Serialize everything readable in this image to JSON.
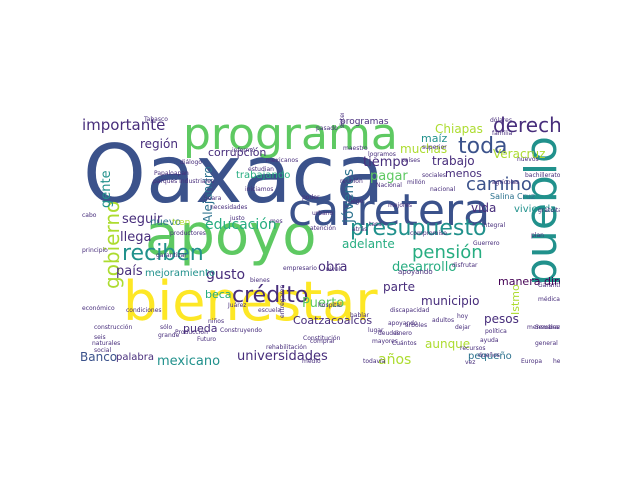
{
  "palette": {
    "background": "#ffffff",
    "navy": "#3b528b",
    "teal": "#21918c",
    "green": "#5ec962",
    "lime": "#addc30",
    "yellow": "#fde725",
    "purple": "#440154",
    "indigo": "#472d7b",
    "sea": "#27ad81",
    "steel": "#2c728e"
  },
  "words": [
    {
      "text": "Oaxaca",
      "color": "navy"
    },
    {
      "text": "bienestar",
      "color": "yellow"
    },
    {
      "text": "apoyo",
      "color": "green"
    },
    {
      "text": "programa",
      "color": "green"
    },
    {
      "text": "carretera",
      "color": "navy"
    },
    {
      "text": "pueblo",
      "color": "teal"
    },
    {
      "text": "presupuesto",
      "color": "teal"
    },
    {
      "text": "gobierno",
      "color": "lime"
    },
    {
      "text": "reciben",
      "color": "teal"
    },
    {
      "text": "crédito",
      "color": "indigo"
    },
    {
      "text": "derecho",
      "color": "indigo"
    },
    {
      "text": "toda",
      "color": "navy"
    },
    {
      "text": "camino",
      "color": "navy"
    },
    {
      "text": "Loma Bonita",
      "color": "indigo"
    },
    {
      "text": "pensión",
      "color": "sea"
    },
    {
      "text": "importante",
      "color": "indigo"
    },
    {
      "text": "jóvenes",
      "color": "steel"
    },
    {
      "text": "Alejandro",
      "color": "steel"
    },
    {
      "text": "educación",
      "color": "sea"
    },
    {
      "text": "universidades",
      "color": "indigo"
    },
    {
      "text": "mexicano",
      "color": "teal"
    },
    {
      "text": "Banco",
      "color": "navy"
    },
    {
      "text": "país",
      "color": "indigo"
    },
    {
      "text": "llega",
      "color": "indigo"
    },
    {
      "text": "seguir",
      "color": "indigo"
    },
    {
      "text": "gente",
      "color": "teal"
    },
    {
      "text": "región",
      "color": "indigo"
    },
    {
      "text": "corrupción",
      "color": "indigo"
    },
    {
      "text": "trabajando",
      "color": "sea"
    },
    {
      "text": "beca",
      "color": "sea"
    },
    {
      "text": "nuevo",
      "color": "steel"
    },
    {
      "text": "tren",
      "color": "lime"
    },
    {
      "text": "pueda",
      "color": "indigo"
    },
    {
      "text": "gusto",
      "color": "indigo"
    },
    {
      "text": "obra",
      "color": "indigo"
    },
    {
      "text": "Puerto",
      "color": "green"
    },
    {
      "text": "Coatzacoalcos",
      "color": "indigo"
    },
    {
      "text": "años",
      "color": "lime"
    },
    {
      "text": "aunque",
      "color": "lime"
    },
    {
      "text": "desarrollo",
      "color": "sea"
    },
    {
      "text": "municipio",
      "color": "indigo"
    },
    {
      "text": "adelante",
      "color": "sea"
    },
    {
      "text": "parte",
      "color": "indigo"
    },
    {
      "text": "vida",
      "color": "indigo"
    },
    {
      "text": "pagar",
      "color": "green"
    },
    {
      "text": "tiempo",
      "color": "indigo"
    },
    {
      "text": "muchas",
      "color": "lime"
    },
    {
      "text": "trabajo",
      "color": "indigo"
    },
    {
      "text": "menos",
      "color": "indigo"
    },
    {
      "text": "Chiapas",
      "color": "lime"
    },
    {
      "text": "maíz",
      "color": "teal"
    },
    {
      "text": "Veracruz",
      "color": "lime"
    },
    {
      "text": "Istmo",
      "color": "lime"
    },
    {
      "text": "pesos",
      "color": "indigo"
    },
    {
      "text": "manera directa",
      "color": "purple"
    },
    {
      "text": "vivienda",
      "color": "teal"
    },
    {
      "text": "pequeño",
      "color": "steel"
    },
    {
      "text": "mejoramiento",
      "color": "teal"
    },
    {
      "text": "palabra",
      "color": "indigo"
    },
    {
      "text": "apoyando",
      "color": "indigo"
    },
    {
      "text": "Salina Cruz",
      "color": "steel"
    },
    {
      "text": "programas",
      "color": "indigo"
    },
    {
      "text": "sistema",
      "color": "indigo"
    },
    {
      "text": "dólares",
      "color": "indigo"
    },
    {
      "text": "Tabasco",
      "color": "indigo"
    },
    {
      "text": "Garantía",
      "color": "indigo"
    },
    {
      "text": "Guerrero",
      "color": "indigo"
    },
    {
      "text": "Europa",
      "color": "indigo"
    },
    {
      "text": "hecho",
      "color": "indigo"
    },
    {
      "text": "Futuro",
      "color": "indigo"
    },
    {
      "text": "Producción",
      "color": "indigo"
    },
    {
      "text": "comprar",
      "color": "indigo"
    },
    {
      "text": "mayores",
      "color": "indigo"
    },
    {
      "text": "deudas",
      "color": "indigo"
    },
    {
      "text": "adultos",
      "color": "indigo"
    },
    {
      "text": "familia",
      "color": "indigo"
    },
    {
      "text": "médica",
      "color": "indigo"
    },
    {
      "text": "superior",
      "color": "indigo"
    },
    {
      "text": "Nacional",
      "color": "indigo"
    },
    {
      "text": "millón",
      "color": "indigo"
    },
    {
      "text": "sociales",
      "color": "indigo"
    },
    {
      "text": "recursos",
      "color": "indigo"
    },
    {
      "text": "dinero",
      "color": "indigo"
    },
    {
      "text": "todavía",
      "color": "indigo"
    },
    {
      "text": "construcción",
      "color": "indigo"
    },
    {
      "text": "social",
      "color": "indigo"
    },
    {
      "text": "seis",
      "color": "indigo"
    },
    {
      "text": "naturales",
      "color": "indigo"
    },
    {
      "text": "económico",
      "color": "indigo"
    },
    {
      "text": "cabo",
      "color": "indigo"
    },
    {
      "text": "Papaloapan",
      "color": "indigo"
    },
    {
      "text": "informó",
      "color": "indigo"
    },
    {
      "text": "parques industriales",
      "color": "indigo"
    },
    {
      "text": "Seara",
      "color": "indigo"
    },
    {
      "text": "niños",
      "color": "indigo"
    },
    {
      "text": "sólo",
      "color": "indigo"
    },
    {
      "text": "grande",
      "color": "indigo"
    },
    {
      "text": "Juárez",
      "color": "indigo"
    },
    {
      "text": "atención",
      "color": "indigo"
    },
    {
      "text": "hospital",
      "color": "indigo"
    },
    {
      "text": "mejores",
      "color": "indigo"
    },
    {
      "text": "Cuántos",
      "color": "indigo"
    },
    {
      "text": "apoyando",
      "color": "indigo"
    },
    {
      "text": "pasado",
      "color": "indigo"
    },
    {
      "text": "estudian",
      "color": "indigo"
    },
    {
      "text": "iniciamos",
      "color": "indigo"
    },
    {
      "text": "productores",
      "color": "indigo"
    },
    {
      "text": "garantizar",
      "color": "indigo"
    },
    {
      "text": "principio",
      "color": "indigo"
    },
    {
      "text": "plan",
      "color": "indigo"
    },
    {
      "text": "Sembrando",
      "color": "indigo"
    },
    {
      "text": "mensuales",
      "color": "indigo"
    },
    {
      "text": "general",
      "color": "indigo"
    },
    {
      "text": "política",
      "color": "indigo"
    },
    {
      "text": "gratuita",
      "color": "indigo"
    },
    {
      "text": "mes",
      "color": "indigo"
    },
    {
      "text": "hoy",
      "color": "indigo"
    },
    {
      "text": "dejar",
      "color": "indigo"
    },
    {
      "text": "nivel",
      "color": "indigo"
    },
    {
      "text": "tasa",
      "color": "indigo"
    },
    {
      "text": "atrás",
      "color": "indigo"
    },
    {
      "text": "poder",
      "color": "indigo"
    },
    {
      "text": "maestro",
      "color": "indigo"
    },
    {
      "text": "logramos",
      "color": "indigo"
    },
    {
      "text": "países",
      "color": "indigo"
    },
    {
      "text": "justo",
      "color": "indigo"
    },
    {
      "text": "Construyendo",
      "color": "indigo"
    },
    {
      "text": "condiciones",
      "color": "indigo"
    },
    {
      "text": "Constitución",
      "color": "indigo"
    },
    {
      "text": "entregaron",
      "color": "indigo"
    },
    {
      "text": "bienes",
      "color": "indigo"
    },
    {
      "text": "disfrutar",
      "color": "indigo"
    },
    {
      "text": "lugar",
      "color": "indigo"
    },
    {
      "text": "árboles",
      "color": "indigo"
    },
    {
      "text": "ayuda",
      "color": "indigo"
    },
    {
      "text": "dueños",
      "color": "indigo"
    },
    {
      "text": "vez",
      "color": "indigo"
    },
    {
      "text": "escuela",
      "color": "indigo"
    },
    {
      "text": "hablar",
      "color": "indigo"
    },
    {
      "text": "empresario",
      "color": "indigo"
    },
    {
      "text": "discapacidad",
      "color": "indigo"
    },
    {
      "text": "urbano",
      "color": "indigo"
    },
    {
      "text": "mexicanos",
      "color": "indigo"
    },
    {
      "text": "integral",
      "color": "indigo"
    },
    {
      "text": "reunión",
      "color": "indigo"
    },
    {
      "text": "necesidades",
      "color": "indigo"
    },
    {
      "text": "nacional",
      "color": "indigo"
    },
    {
      "text": "agrícolas",
      "color": "indigo"
    },
    {
      "text": "bachillerato",
      "color": "indigo"
    },
    {
      "text": "compromiso",
      "color": "indigo"
    },
    {
      "text": "rehabilitación",
      "color": "indigo"
    },
    {
      "text": "medio",
      "color": "indigo"
    },
    {
      "text": "diálogo",
      "color": "indigo"
    },
    {
      "text": "nuevos",
      "color": "indigo"
    },
    {
      "text": "riego",
      "color": "indigo"
    }
  ]
}
